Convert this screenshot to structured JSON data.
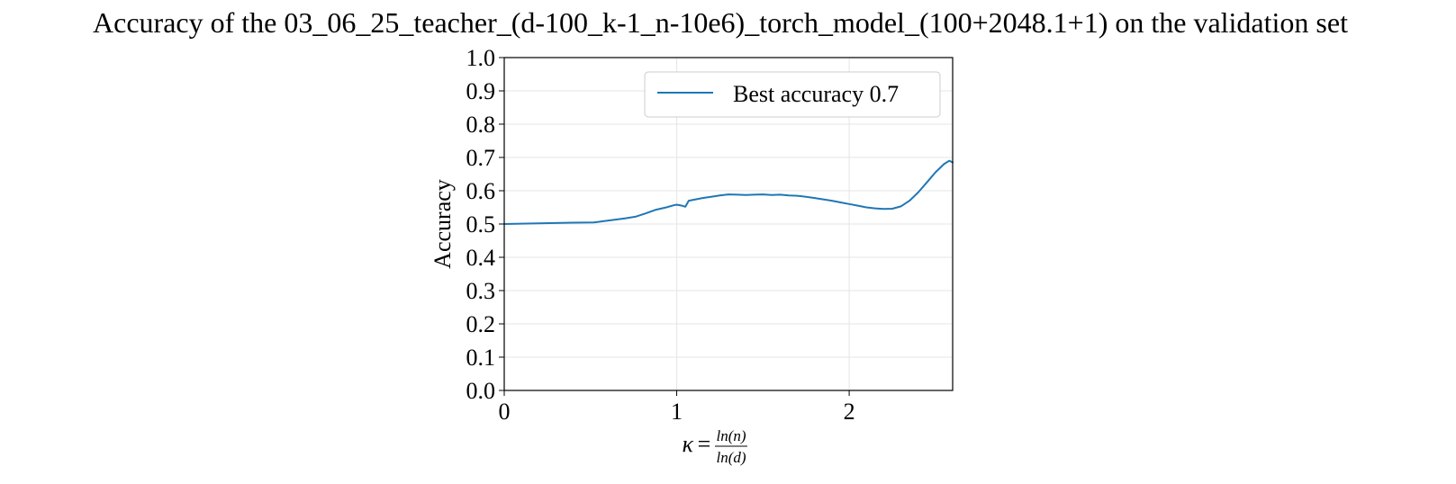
{
  "chart_data": {
    "type": "line",
    "title": "Accuracy of the 03_06_25_teacher_(d-100_k-1_n-10e6)_torch_model_(100+2048.1+1) on the validation set",
    "ylabel": "Accuracy",
    "xlabel": {
      "symbol": "κ",
      "equals": "=",
      "numerator": "ln(n)",
      "denominator": "ln(d)"
    },
    "xlim": [
      0,
      2.6
    ],
    "ylim": [
      0.0,
      1.0
    ],
    "x_ticks": [
      0,
      1,
      2
    ],
    "x_tick_labels": [
      "0",
      "1",
      "2"
    ],
    "y_ticks": [
      0.0,
      0.1,
      0.2,
      0.3,
      0.4,
      0.5,
      0.6,
      0.7,
      0.8,
      0.9,
      1.0
    ],
    "y_tick_labels": [
      "0.0",
      "0.1",
      "0.2",
      "0.3",
      "0.4",
      "0.5",
      "0.6",
      "0.7",
      "0.8",
      "0.9",
      "1.0"
    ],
    "grid": true,
    "legend_position": "top-right",
    "colors": {
      "line": "#1f77b4",
      "grid": "#e5e5e5",
      "axis": "#000000"
    },
    "series": [
      {
        "name": "Best accuracy 0.7",
        "x": [
          0,
          0.2,
          0.4,
          0.52,
          0.6,
          0.7,
          0.76,
          0.82,
          0.88,
          0.94,
          0.98,
          1.0,
          1.03,
          1.05,
          1.07,
          1.1,
          1.15,
          1.2,
          1.25,
          1.3,
          1.35,
          1.4,
          1.45,
          1.5,
          1.55,
          1.6,
          1.65,
          1.7,
          1.75,
          1.8,
          1.85,
          1.9,
          1.95,
          2.0,
          2.05,
          2.1,
          2.15,
          2.2,
          2.25,
          2.3,
          2.35,
          2.4,
          2.45,
          2.5,
          2.55,
          2.58,
          2.6
        ],
        "y": [
          0.5,
          0.502,
          0.504,
          0.505,
          0.51,
          0.517,
          0.522,
          0.532,
          0.543,
          0.55,
          0.556,
          0.558,
          0.555,
          0.552,
          0.57,
          0.573,
          0.578,
          0.582,
          0.586,
          0.589,
          0.588,
          0.587,
          0.588,
          0.589,
          0.587,
          0.588,
          0.586,
          0.585,
          0.582,
          0.578,
          0.574,
          0.57,
          0.565,
          0.56,
          0.555,
          0.55,
          0.547,
          0.545,
          0.546,
          0.553,
          0.57,
          0.595,
          0.625,
          0.655,
          0.68,
          0.69,
          0.685
        ]
      }
    ]
  }
}
